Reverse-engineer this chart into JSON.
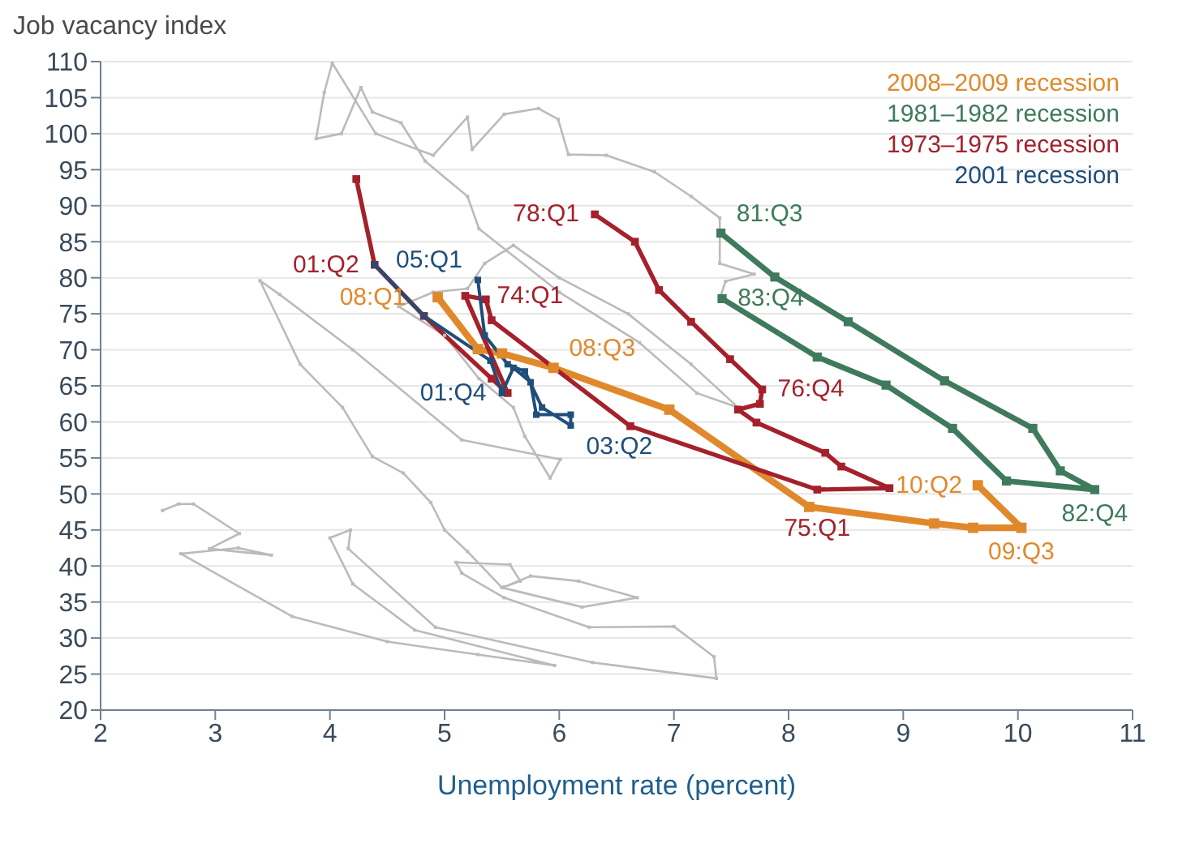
{
  "chart_data": {
    "type": "line",
    "ylabel": "Job vacancy index",
    "xlabel": "Unemployment rate (percent)",
    "xlim": [
      2,
      11
    ],
    "xticks": [
      2,
      3,
      4,
      5,
      6,
      7,
      8,
      9,
      10,
      11
    ],
    "ylim": [
      20,
      110
    ],
    "yticks": [
      20,
      25,
      30,
      35,
      40,
      45,
      50,
      55,
      60,
      65,
      70,
      75,
      80,
      85,
      90,
      95,
      100,
      105,
      110
    ],
    "grid": "y",
    "legend": "top right",
    "marker": "square",
    "line_style": "solid",
    "series": [
      {
        "color": "#bbbbbb",
        "x": [
          2.54,
          2.68,
          2.81,
          3.21,
          2.95,
          3.49,
          3.2,
          2.7,
          3.67,
          4.5,
          5.29,
          5.96,
          4.74,
          4.2,
          4.0,
          4.18,
          4.16,
          4.92,
          6.29,
          7.37,
          7.35,
          7.0,
          6.26,
          5.52,
          5.15,
          5.1,
          5.57,
          5.66,
          5.52,
          5.75,
          6.17,
          6.68,
          6.2,
          5.5,
          5.2,
          5.0,
          4.88,
          4.64,
          4.37,
          4.11,
          3.74,
          3.39,
          3.56,
          4.2,
          5.15,
          6.01,
          5.92,
          5.7,
          5.6,
          5.3,
          5.0,
          4.6,
          4.9,
          5.2,
          5.35,
          5.6,
          6.0,
          6.6,
          7.15,
          7.56,
          7.2,
          6.7,
          6.0,
          5.3,
          5.2,
          4.83,
          4.62,
          4.37,
          4.27,
          4.1,
          3.88,
          3.95,
          4.02,
          4.4,
          4.9,
          5.2,
          5.24,
          5.52,
          5.82,
          5.99,
          6.08,
          6.41,
          6.83,
          7.15,
          7.4,
          7.4,
          7.7,
          7.45,
          7.4
        ],
        "values": [
          47.7,
          48.6,
          48.6,
          44.5,
          42.4,
          41.5,
          42.5,
          41.7,
          33,
          29.5,
          27.7,
          26.2,
          31.1,
          37.5,
          43.9,
          45,
          42.4,
          31.5,
          26.6,
          24.4,
          27.4,
          31.6,
          31.5,
          35.6,
          39,
          40.5,
          40.2,
          37.9,
          37.1,
          38.6,
          37.9,
          35.6,
          34.3,
          37,
          42,
          45,
          48.8,
          52.9,
          55.2,
          62,
          68,
          79.6,
          77.7,
          70,
          57.5,
          54.8,
          52.2,
          58,
          62,
          66,
          72,
          76,
          78,
          78.5,
          82,
          84.5,
          80,
          75,
          68,
          62,
          64,
          71,
          78,
          86.8,
          91.3,
          96.2,
          101.5,
          103,
          106.4,
          100,
          99.3,
          105.7,
          109.8,
          100,
          97,
          102.3,
          97.8,
          102.7,
          103.5,
          102,
          97.1,
          97,
          94.7,
          91.3,
          88.3,
          82,
          80.5,
          79.5,
          77.1
        ]
      },
      {
        "name": "2008–2009 recession",
        "color": "#e0892c",
        "x": [
          4.94,
          5.29,
          5.5,
          5.95,
          6.96,
          8.18,
          9.27,
          9.61,
          10.03,
          9.65
        ],
        "values": [
          77.3,
          70.1,
          69.5,
          67.5,
          61.7,
          48.2,
          45.9,
          45.3,
          45.3,
          51.2
        ]
      },
      {
        "name": "1981–1982 recession",
        "color": "#3f7a5c",
        "x": [
          7.41,
          7.88,
          8.52,
          9.36,
          10.13,
          10.37,
          10.67,
          9.9,
          9.43,
          8.85,
          8.25,
          7.42
        ],
        "values": [
          86.2,
          80.1,
          73.9,
          65.7,
          59.1,
          53.2,
          50.6,
          51.8,
          59.1,
          65.1,
          69,
          77.1
        ]
      },
      {
        "name": "1973–1975 recession",
        "color": "#a4212b",
        "x": [
          4.23,
          4.39,
          4.82,
          5.41,
          5.55,
          5.18,
          5.36,
          5.41,
          6.62,
          8.25,
          8.88,
          8.46,
          8.32,
          7.72,
          7.56,
          7.75,
          7.77,
          7.49,
          7.15,
          6.87,
          6.66,
          6.31
        ],
        "values": [
          93.7,
          81.8,
          74.7,
          66,
          64,
          77.5,
          77,
          74.1,
          59.4,
          50.6,
          50.8,
          53.8,
          55.7,
          59.9,
          61.7,
          62.5,
          64.5,
          68.7,
          73.9,
          78.3,
          85,
          88.8
        ]
      },
      {
        "name": "2001 recession",
        "color": "#1f4e7a",
        "x": [
          4.39,
          4.82,
          5.4,
          5.5,
          5.6,
          5.75,
          5.8,
          6.1,
          6.1,
          5.85,
          5.7,
          5.55,
          5.35,
          5.29
        ],
        "values": [
          81.8,
          74.7,
          68.5,
          64,
          67.5,
          65.5,
          61,
          61,
          59.5,
          62,
          67,
          68,
          72,
          79.7
        ]
      }
    ],
    "annotations": [
      {
        "text": "78:Q1",
        "x": 6.31,
        "y": 88.8
      },
      {
        "text": "81:Q3",
        "x": 7.41,
        "y": 86.2
      },
      {
        "text": "83:Q4",
        "x": 7.42,
        "y": 77.1
      },
      {
        "text": "01:Q2",
        "x": 4.39,
        "y": 81.8
      },
      {
        "text": "05:Q1",
        "x": 5.29,
        "y": 79.7
      },
      {
        "text": "74:Q1",
        "x": 5.18,
        "y": 77.5
      },
      {
        "text": "08:Q1",
        "x": 4.94,
        "y": 77.3
      },
      {
        "text": "08:Q3",
        "x": 5.95,
        "y": 67.5
      },
      {
        "text": "01:Q4",
        "x": 5.5,
        "y": 64
      },
      {
        "text": "76:Q4",
        "x": 7.77,
        "y": 64.5
      },
      {
        "text": "03:Q2",
        "x": 6.1,
        "y": 59.5
      },
      {
        "text": "10:Q2",
        "x": 9.65,
        "y": 51.2
      },
      {
        "text": "75:Q1",
        "x": 8.25,
        "y": 50.6
      },
      {
        "text": "82:Q4",
        "x": 10.67,
        "y": 50.6
      },
      {
        "text": "09:Q3",
        "x": 10.03,
        "y": 45.3
      }
    ]
  }
}
